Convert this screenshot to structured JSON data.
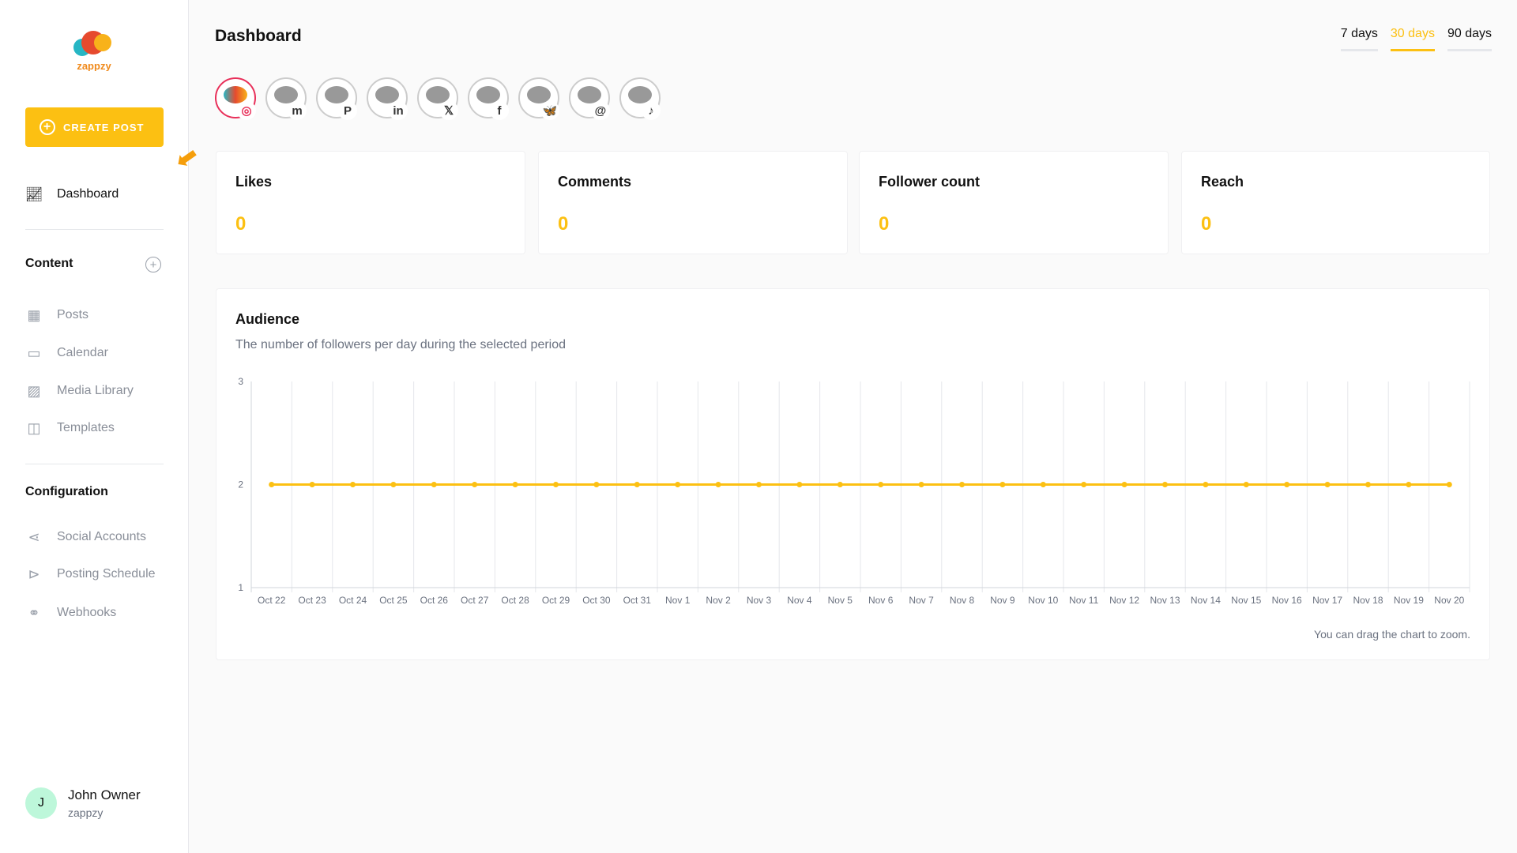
{
  "sidebar": {
    "logo_text": "zappzy",
    "create_post": "CREATE POST",
    "dashboard": "Dashboard",
    "content_heading": "Content",
    "content_items": [
      {
        "label": "Posts",
        "icon": "grid-icon"
      },
      {
        "label": "Calendar",
        "icon": "calendar-icon"
      },
      {
        "label": "Media Library",
        "icon": "image-icon"
      },
      {
        "label": "Templates",
        "icon": "template-icon"
      }
    ],
    "config_heading": "Configuration",
    "config_items": [
      {
        "label": "Social Accounts",
        "icon": "share-icon"
      },
      {
        "label": "Posting Schedule",
        "icon": "schedule-icon"
      },
      {
        "label": "Webhooks",
        "icon": "webhook-icon"
      }
    ],
    "user": {
      "initial": "J",
      "name": "John Owner",
      "org": "zappzy"
    }
  },
  "header": {
    "title": "Dashboard",
    "ranges": [
      "7 days",
      "30 days",
      "90 days"
    ],
    "active_range": "30 days"
  },
  "accounts": [
    {
      "network": "instagram",
      "glyph": "◎",
      "selected": true,
      "color": "#e8305a"
    },
    {
      "network": "mastodon",
      "glyph": "m"
    },
    {
      "network": "pinterest",
      "glyph": "P"
    },
    {
      "network": "linkedin",
      "glyph": "in"
    },
    {
      "network": "x",
      "glyph": "𝕏"
    },
    {
      "network": "facebook",
      "glyph": "f"
    },
    {
      "network": "bluesky",
      "glyph": "🦋"
    },
    {
      "network": "threads",
      "glyph": "@"
    },
    {
      "network": "tiktok",
      "glyph": "♪"
    }
  ],
  "stats": [
    {
      "label": "Likes",
      "value": "0"
    },
    {
      "label": "Comments",
      "value": "0"
    },
    {
      "label": "Follower count",
      "value": "0"
    },
    {
      "label": "Reach",
      "value": "0"
    }
  ],
  "audience": {
    "title": "Audience",
    "subtitle": "The number of followers per day during the selected period",
    "note": "You can drag the chart to zoom."
  },
  "chart_data": {
    "type": "line",
    "categories": [
      "Oct 22",
      "Oct 23",
      "Oct 24",
      "Oct 25",
      "Oct 26",
      "Oct 27",
      "Oct 28",
      "Oct 29",
      "Oct 30",
      "Oct 31",
      "Nov 1",
      "Nov 2",
      "Nov 3",
      "Nov 4",
      "Nov 5",
      "Nov 6",
      "Nov 7",
      "Nov 8",
      "Nov 9",
      "Nov 10",
      "Nov 11",
      "Nov 12",
      "Nov 13",
      "Nov 14",
      "Nov 15",
      "Nov 16",
      "Nov 17",
      "Nov 18",
      "Nov 19",
      "Nov 20"
    ],
    "values": [
      2,
      2,
      2,
      2,
      2,
      2,
      2,
      2,
      2,
      2,
      2,
      2,
      2,
      2,
      2,
      2,
      2,
      2,
      2,
      2,
      2,
      2,
      2,
      2,
      2,
      2,
      2,
      2,
      2,
      2
    ],
    "ylim": [
      1,
      3
    ],
    "yticks": [
      1,
      2,
      3
    ],
    "grid": true,
    "color": "#fcc012"
  }
}
